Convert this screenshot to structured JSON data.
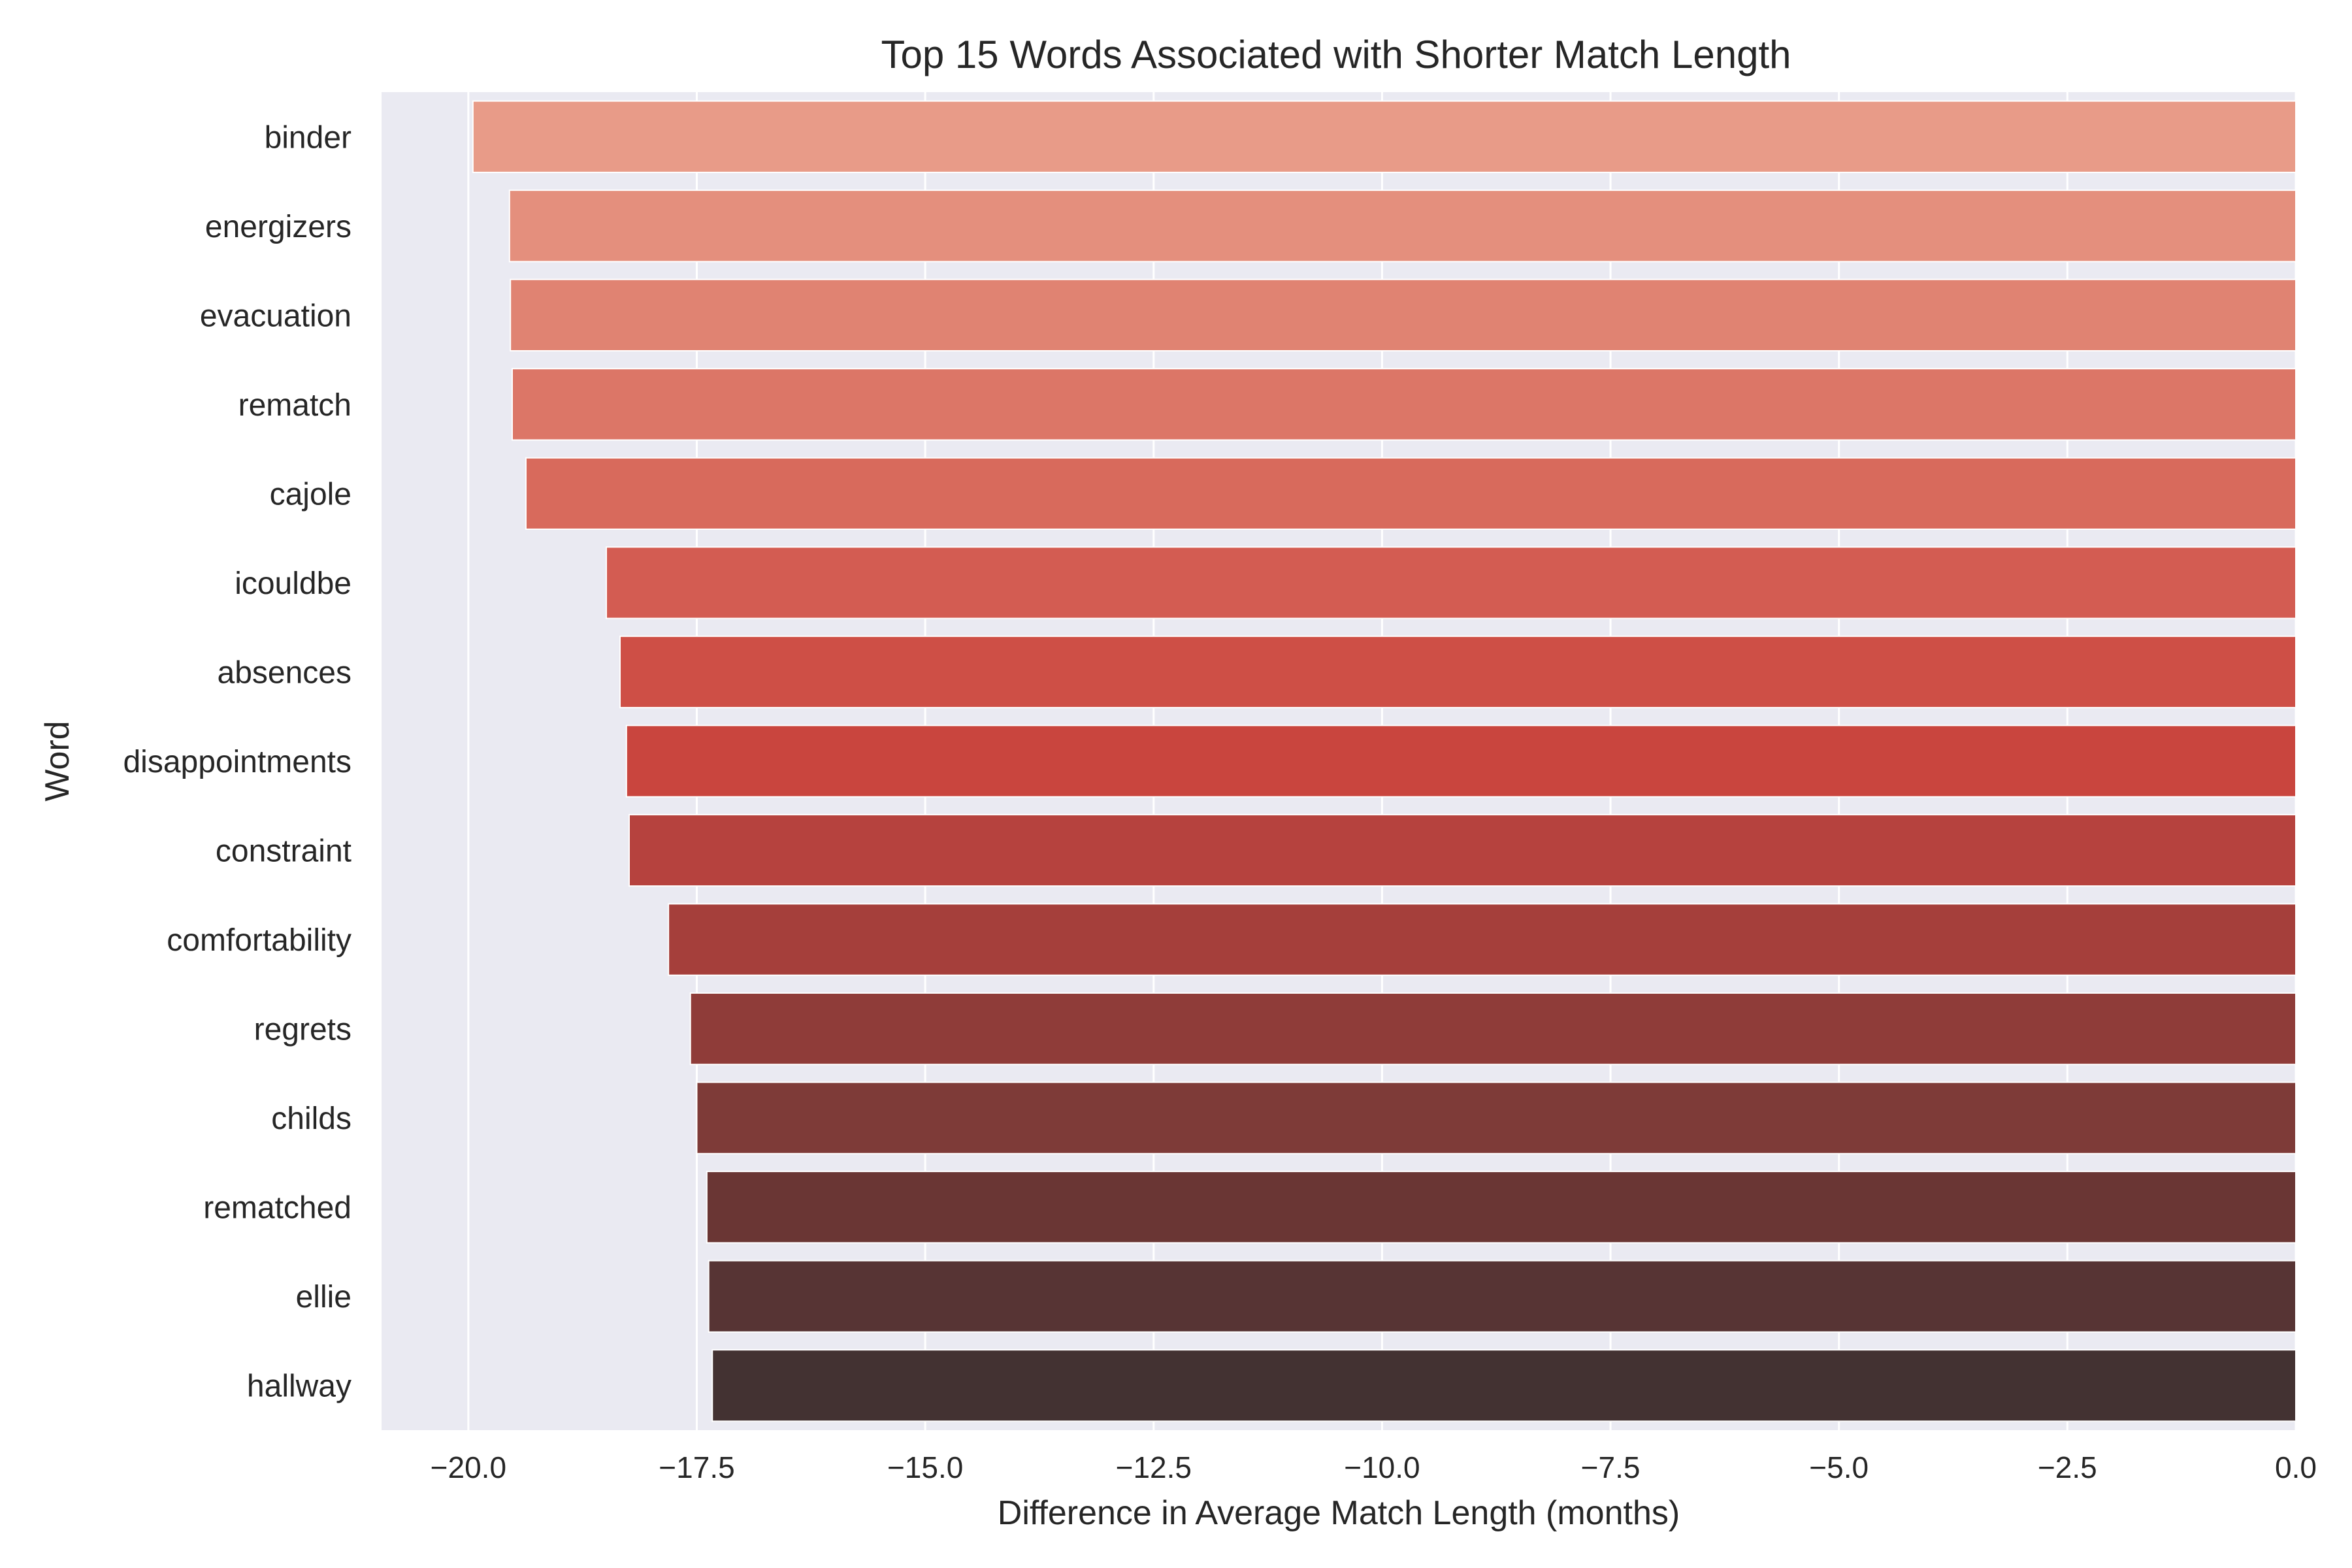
{
  "chart_data": {
    "type": "bar",
    "orientation": "horizontal",
    "title": "Top 15 Words Associated with Shorter Match Length",
    "xlabel": "Difference in Average Match Length (months)",
    "ylabel": "Word",
    "xlim": [
      -20.95,
      0.0
    ],
    "xticks": [
      -20.0,
      -17.5,
      -15.0,
      -12.5,
      -10.0,
      -7.5,
      -5.0,
      -2.5,
      0.0
    ],
    "xtick_labels": [
      "−20.0",
      "−17.5",
      "−15.0",
      "−12.5",
      "−10.0",
      "−7.5",
      "−5.0",
      "−2.5",
      "0.0"
    ],
    "grid": true,
    "categories": [
      "binder",
      "energizers",
      "evacuation",
      "rematch",
      "cajole",
      "icouldbe",
      "absences",
      "disappointments",
      "constraint",
      "comfortability",
      "regrets",
      "childs",
      "rematched",
      "ellie",
      "hallway"
    ],
    "values": [
      -19.95,
      -19.55,
      -19.54,
      -19.52,
      -19.37,
      -18.49,
      -18.34,
      -18.27,
      -18.24,
      -17.81,
      -17.57,
      -17.5,
      -17.39,
      -17.37,
      -17.33
    ],
    "colors": [
      "#e89b88",
      "#e48f7d",
      "#e08372",
      "#dc7667",
      "#d86a5c",
      "#d35c52",
      "#ce4f46",
      "#c9453e",
      "#b6423e",
      "#a53f3b",
      "#8f3c39",
      "#7e3b38",
      "#6a3634",
      "#573434",
      "#433232"
    ],
    "plot_background": "#eaeaf2",
    "grid_color": "#ffffff",
    "text_color": "#262626"
  }
}
